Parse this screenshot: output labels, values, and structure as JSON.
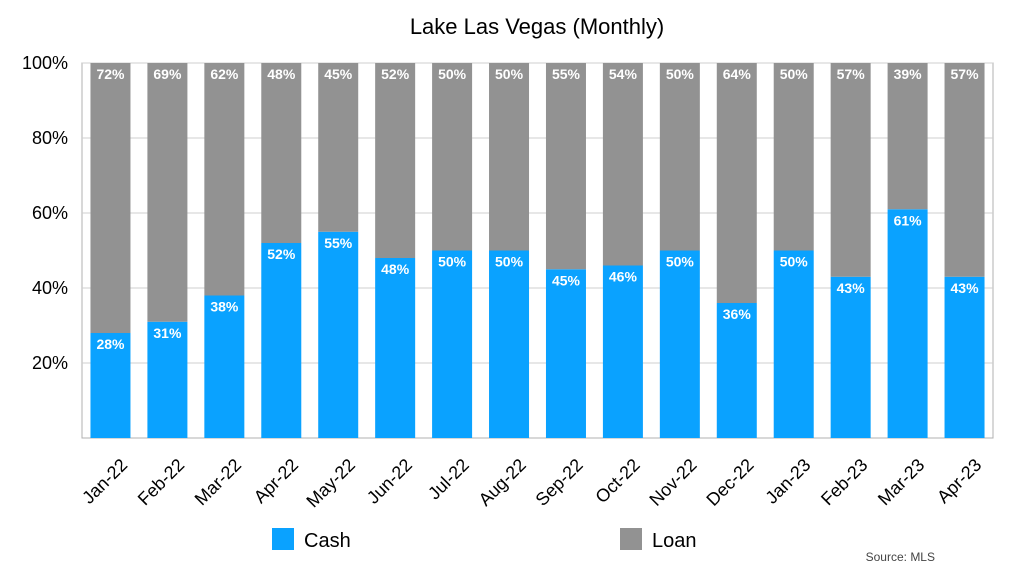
{
  "chart_data": {
    "type": "bar",
    "stacked": true,
    "title": "Lake Las Vegas (Monthly)",
    "categories": [
      "Jan-22",
      "Feb-22",
      "Mar-22",
      "Apr-22",
      "May-22",
      "Jun-22",
      "Jul-22",
      "Aug-22",
      "Sep-22",
      "Oct-22",
      "Nov-22",
      "Dec-22",
      "Jan-23",
      "Feb-23",
      "Mar-23",
      "Apr-23"
    ],
    "series": [
      {
        "name": "Cash",
        "color": "#0aa2ff",
        "values": [
          28,
          31,
          38,
          52,
          55,
          48,
          50,
          50,
          45,
          46,
          50,
          36,
          50,
          43,
          61,
          43
        ]
      },
      {
        "name": "Loan",
        "color": "#929292",
        "values": [
          72,
          69,
          62,
          48,
          45,
          52,
          50,
          50,
          55,
          54,
          50,
          64,
          50,
          57,
          39,
          57
        ]
      }
    ],
    "ylim": [
      0,
      100
    ],
    "yticks": [
      "20%",
      "40%",
      "60%",
      "80%",
      "100%"
    ],
    "ytick_values": [
      20,
      40,
      60,
      80,
      100
    ],
    "grid": true,
    "legend": "bottom",
    "source": "Source: MLS"
  }
}
